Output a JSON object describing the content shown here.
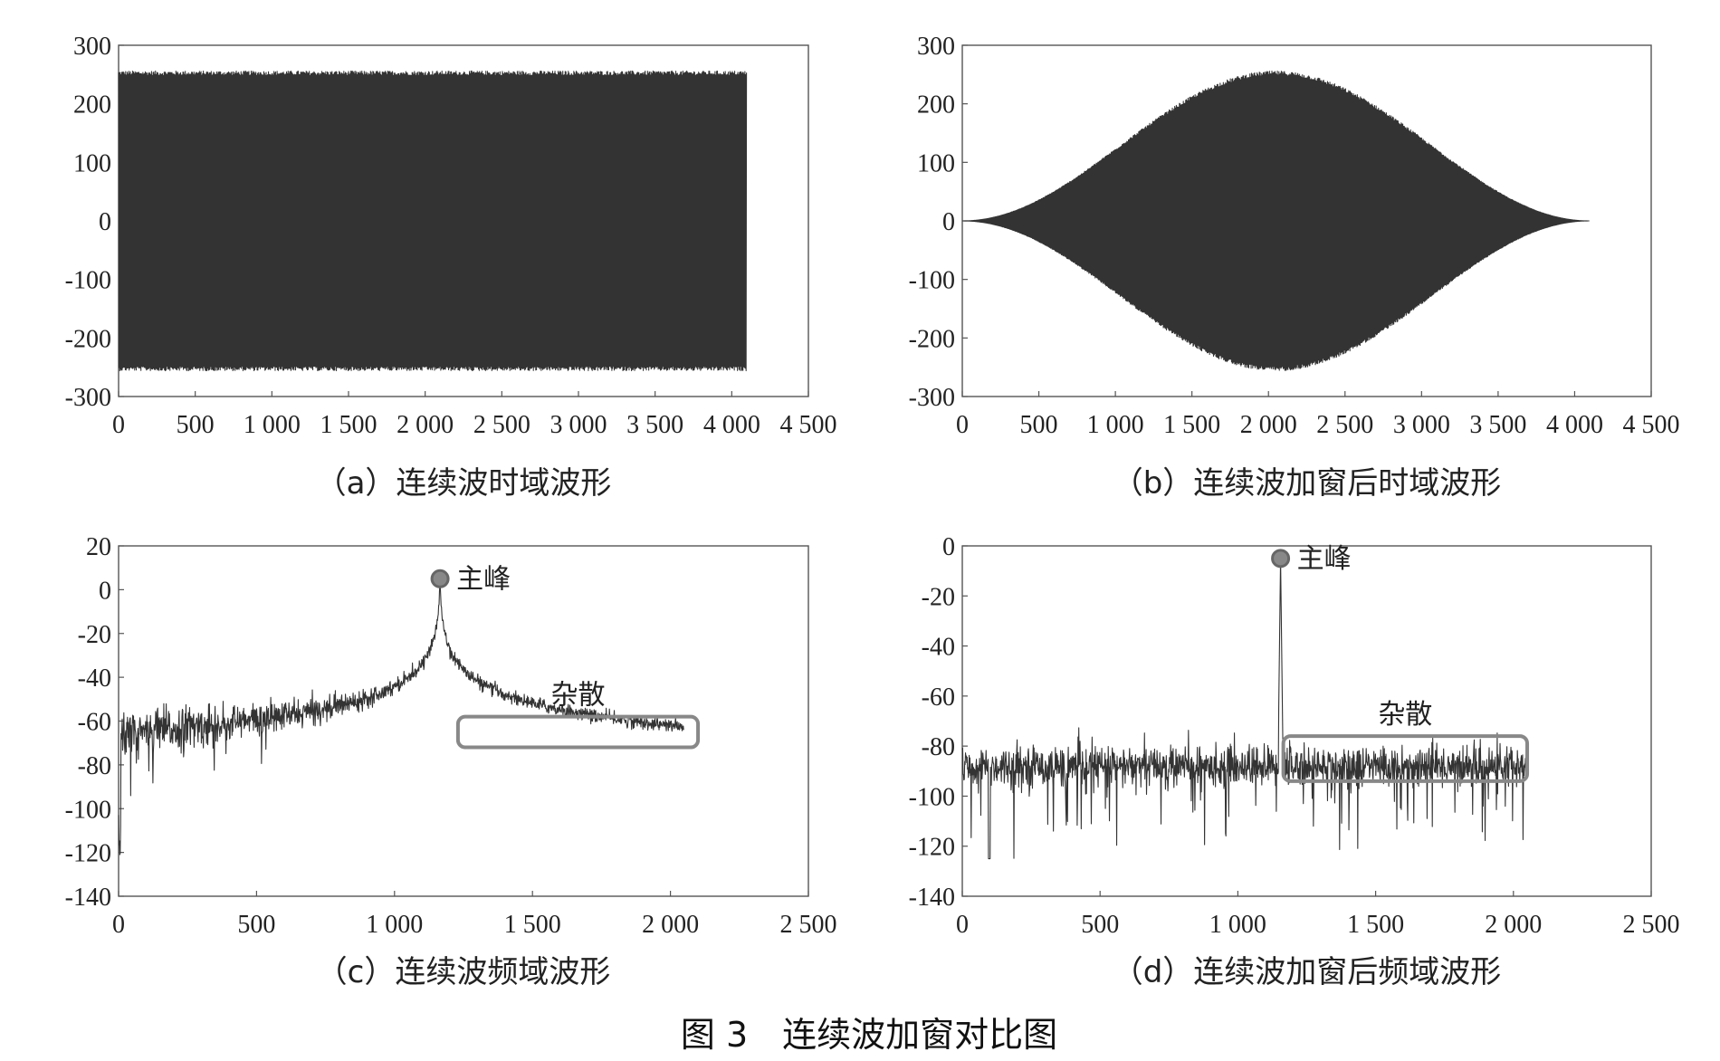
{
  "figure_caption": "图 3　连续波加窗对比图",
  "chart_data": [
    {
      "id": "a",
      "type": "line",
      "caption": "（a）连续波时域波形",
      "signal": "continuous",
      "xlim": [
        0,
        4500
      ],
      "ylim": [
        -300,
        300
      ],
      "xticks": [
        0,
        500,
        1000,
        1500,
        2000,
        2500,
        3000,
        3500,
        4000,
        4500
      ],
      "xtick_labels": [
        "0",
        "500",
        "1 000",
        "1 500",
        "2 000",
        "2 500",
        "3 000",
        "3 500",
        "4 000",
        "4 500"
      ],
      "yticks": [
        300,
        200,
        100,
        0,
        -100,
        -200,
        -300
      ],
      "ytick_labels": [
        "300",
        "200",
        "100",
        "0",
        "-100",
        "-200",
        "-300"
      ],
      "x_range": [
        0,
        4096
      ],
      "amplitude": 256,
      "color": "#333333"
    },
    {
      "id": "b",
      "type": "line",
      "caption": "（b）连续波加窗后时域波形",
      "signal": "windowed",
      "xlim": [
        0,
        4500
      ],
      "ylim": [
        -300,
        300
      ],
      "xticks": [
        0,
        500,
        1000,
        1500,
        2000,
        2500,
        3000,
        3500,
        4000,
        4500
      ],
      "xtick_labels": [
        "0",
        "500",
        "1 000",
        "1 500",
        "2 000",
        "2 500",
        "3 000",
        "3 500",
        "4 000",
        "4 500"
      ],
      "yticks": [
        300,
        200,
        100,
        0,
        -100,
        -200,
        -300
      ],
      "ytick_labels": [
        "300",
        "200",
        "100",
        "0",
        "-100",
        "-200",
        "-300"
      ],
      "x_range": [
        0,
        4096
      ],
      "amplitude": 256,
      "color": "#333333"
    },
    {
      "id": "c",
      "type": "line",
      "caption": "（c）连续波频域波形",
      "signal": "spectrum_unwindowed",
      "xlim": [
        0,
        2500
      ],
      "ylim": [
        -140,
        20
      ],
      "xticks": [
        0,
        500,
        1000,
        1500,
        2000,
        2500
      ],
      "xtick_labels": [
        "0",
        "500",
        "1 000",
        "1 500",
        "2 000",
        "2 500"
      ],
      "yticks": [
        20,
        0,
        -20,
        -40,
        -60,
        -80,
        -100,
        -120,
        -140
      ],
      "ytick_labels": [
        "20",
        "0",
        "-20",
        "-40",
        "-60",
        "-80",
        "-100",
        "-120",
        "-140"
      ],
      "x_range": [
        0,
        2048
      ],
      "peak": {
        "x": 1165,
        "y": 5,
        "label": "主峰"
      },
      "spur_box": {
        "label": "杂散",
        "x": [
          1230,
          2100
        ],
        "y": [
          -58,
          -72
        ]
      },
      "color": "#333333"
    },
    {
      "id": "d",
      "type": "line",
      "caption": "（d）连续波加窗后频域波形",
      "signal": "spectrum_windowed",
      "xlim": [
        0,
        2500
      ],
      "ylim": [
        -140,
        0
      ],
      "xticks": [
        0,
        500,
        1000,
        1500,
        2000,
        2500
      ],
      "xtick_labels": [
        "0",
        "500",
        "1 000",
        "1 500",
        "2 000",
        "2 500"
      ],
      "yticks": [
        0,
        -20,
        -40,
        -60,
        -80,
        -100,
        -120,
        -140
      ],
      "ytick_labels": [
        "0",
        "-20",
        "-40",
        "-60",
        "-80",
        "-100",
        "-120",
        "-140"
      ],
      "x_range": [
        0,
        2048
      ],
      "peak": {
        "x": 1155,
        "y": -5,
        "label": "主峰"
      },
      "spur_box": {
        "label": "杂散",
        "x": [
          1165,
          2050
        ],
        "y": [
          -76,
          -94
        ]
      },
      "color": "#333333"
    }
  ]
}
